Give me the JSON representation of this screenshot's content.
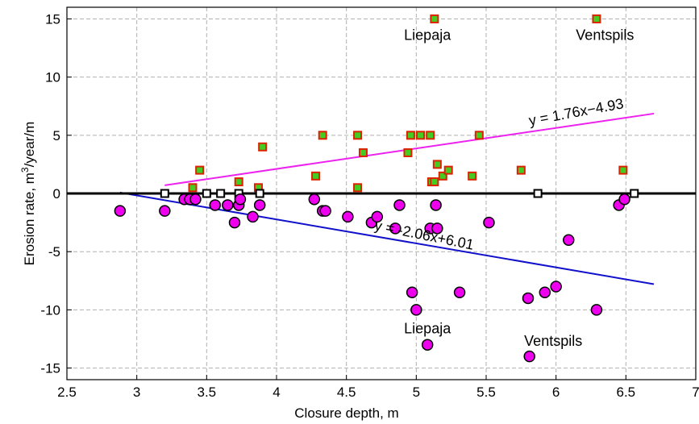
{
  "chart_data": {
    "type": "scatter",
    "xlabel": "Closure depth, m",
    "ylabel": "Erosion rate, m",
    "ylabel_sup": "3",
    "ylabel_suffix": "/year/m",
    "xlim": [
      2.5,
      7
    ],
    "ylim": [
      -16,
      16
    ],
    "x_ticks": [
      2.5,
      3,
      3.5,
      4,
      4.5,
      5,
      5.5,
      6,
      6.5,
      7
    ],
    "y_ticks": [
      -15,
      -10,
      -5,
      0,
      5,
      10,
      15
    ],
    "grid": true,
    "colors": {
      "accretion_fill": "#44cc22",
      "accretion_edge": "#dd2200",
      "erosion_fill": "#ee00ee",
      "zero_fill": "#ffffff",
      "accretion_trend": "#ee22ee",
      "erosion_trend": "#1111cc",
      "zero_line": "#000000"
    },
    "series": [
      {
        "key": "accretion",
        "marker": "square",
        "points": [
          [
            3.4,
            0.5
          ],
          [
            3.45,
            2
          ],
          [
            3.73,
            1
          ],
          [
            3.87,
            0.5
          ],
          [
            3.9,
            4
          ],
          [
            4.28,
            1.5
          ],
          [
            4.33,
            5
          ],
          [
            4.58,
            5
          ],
          [
            4.58,
            0.5
          ],
          [
            4.62,
            3.5
          ],
          [
            4.94,
            3.5
          ],
          [
            4.96,
            5
          ],
          [
            5.03,
            5
          ],
          [
            5.1,
            5
          ],
          [
            5.11,
            1
          ],
          [
            5.13,
            1
          ],
          [
            5.15,
            2.5
          ],
          [
            5.19,
            1.5
          ],
          [
            5.23,
            2
          ],
          [
            5.4,
            1.5
          ],
          [
            5.45,
            5
          ],
          [
            5.75,
            2
          ],
          [
            6.48,
            2
          ],
          [
            5.13,
            15
          ],
          [
            6.29,
            15
          ]
        ]
      },
      {
        "key": "zero",
        "marker": "square",
        "points": [
          [
            3.2,
            0
          ],
          [
            3.5,
            0
          ],
          [
            3.6,
            0
          ],
          [
            3.73,
            0
          ],
          [
            3.88,
            0
          ],
          [
            5.87,
            0
          ],
          [
            6.56,
            0
          ]
        ]
      },
      {
        "key": "erosion",
        "marker": "circle",
        "points": [
          [
            2.88,
            -1.5
          ],
          [
            3.2,
            -1.5
          ],
          [
            3.34,
            -0.5
          ],
          [
            3.38,
            -0.5
          ],
          [
            3.42,
            -0.5
          ],
          [
            3.56,
            -1
          ],
          [
            3.65,
            -1
          ],
          [
            3.7,
            -2.5
          ],
          [
            3.73,
            -1
          ],
          [
            3.74,
            -0.5
          ],
          [
            3.83,
            -2
          ],
          [
            3.88,
            -1
          ],
          [
            4.27,
            -0.5
          ],
          [
            4.33,
            -1.5
          ],
          [
            4.35,
            -1.5
          ],
          [
            4.51,
            -2
          ],
          [
            4.68,
            -2.5
          ],
          [
            4.72,
            -2
          ],
          [
            4.85,
            -3
          ],
          [
            4.88,
            -1
          ],
          [
            4.97,
            -8.5
          ],
          [
            5.0,
            -10
          ],
          [
            5.08,
            -13
          ],
          [
            5.1,
            -3
          ],
          [
            5.14,
            -1
          ],
          [
            5.15,
            -3
          ],
          [
            5.31,
            -8.5
          ],
          [
            5.52,
            -2.5
          ],
          [
            5.8,
            -9
          ],
          [
            5.81,
            -14
          ],
          [
            5.92,
            -8.5
          ],
          [
            6.0,
            -8
          ],
          [
            6.09,
            -4
          ],
          [
            6.29,
            -10
          ],
          [
            6.45,
            -1
          ],
          [
            6.49,
            -0.5
          ]
        ]
      }
    ],
    "trend_lines": [
      {
        "key": "accretion_trend",
        "x": [
          3.2,
          6.7
        ],
        "equation": "y = 1.76x−4.93"
      },
      {
        "key": "erosion_trend",
        "x": [
          2.88,
          6.7
        ],
        "equation": "y = -2.06x+6.01"
      }
    ],
    "annotations": [
      {
        "text": "Liepaja",
        "x": 5.08,
        "y": 13.2
      },
      {
        "text": "Ventspils",
        "x": 6.35,
        "y": 13.2
      },
      {
        "text": "Liepaja",
        "x": 5.08,
        "y": -12.0
      },
      {
        "text": "Ventspils",
        "x": 5.98,
        "y": -13.1
      }
    ]
  }
}
